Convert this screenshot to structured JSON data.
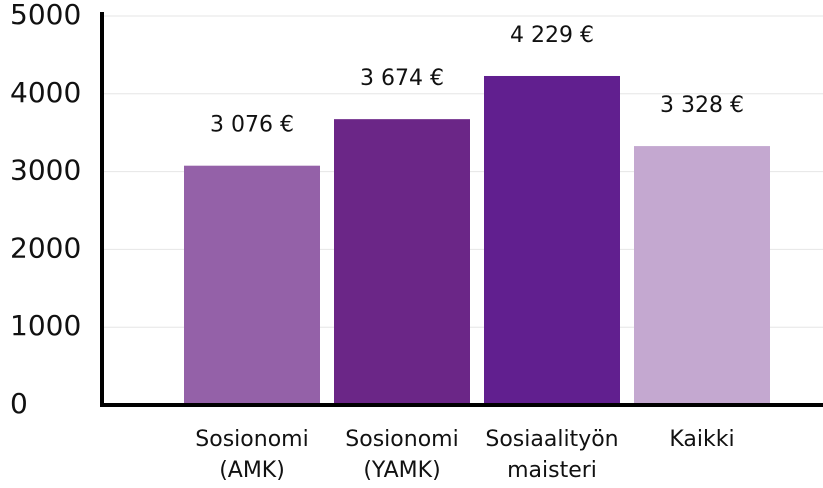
{
  "chart_data": {
    "type": "bar",
    "categories": [
      "Sosionomi (AMK)",
      "Sosionomi (YAMK)",
      "Sosiaalityön maisteri",
      "Kaikki"
    ],
    "values": [
      3076,
      3674,
      4229,
      3328
    ],
    "value_labels": [
      "3 076 €",
      "3 674 €",
      "4 229 €",
      "3 328 €"
    ],
    "colors": [
      "#9461a8",
      "#6b2687",
      "#611f8f",
      "#c4a8d0"
    ],
    "ylim": [
      0,
      5000
    ],
    "yticks": [
      0,
      1000,
      2000,
      3000,
      4000,
      5000
    ],
    "grid": true
  }
}
